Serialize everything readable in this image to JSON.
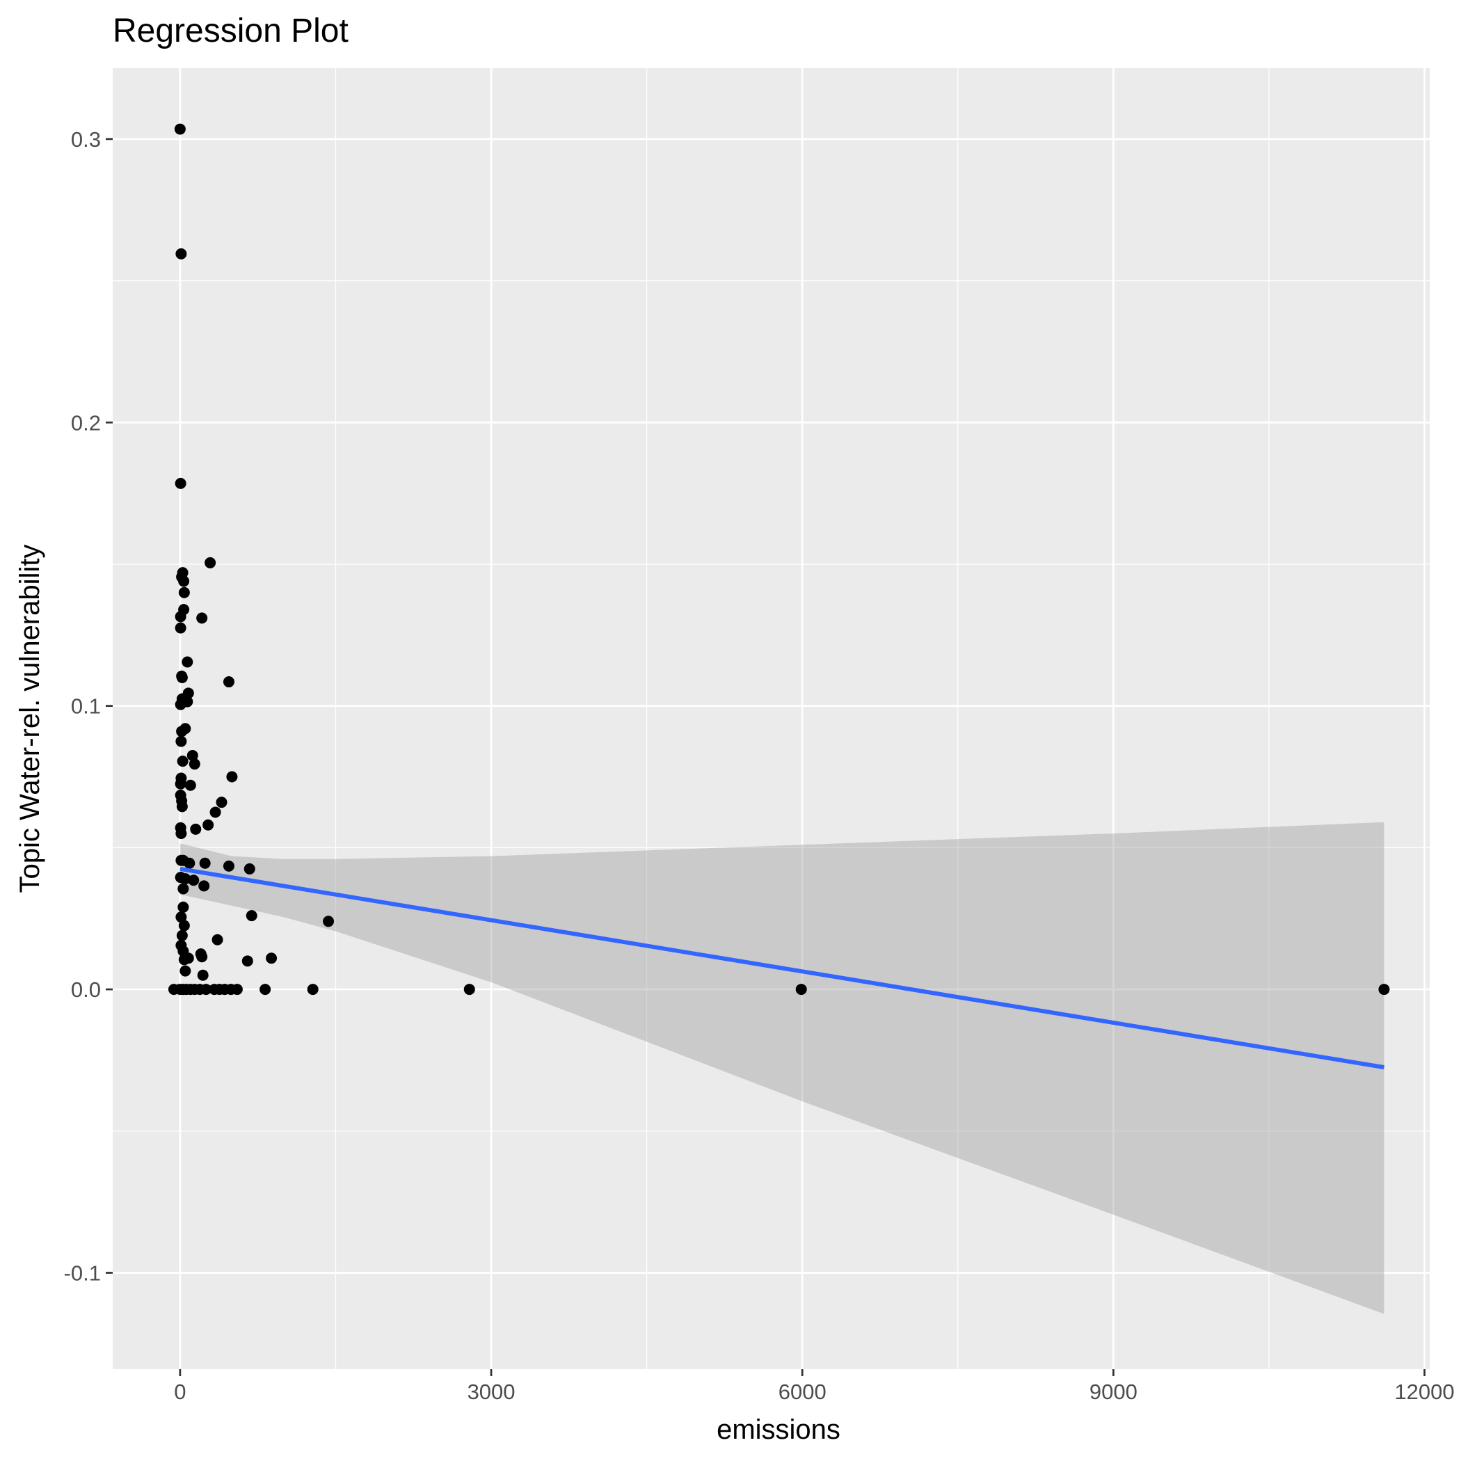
{
  "chart_data": {
    "type": "scatter",
    "title": "Regression Plot",
    "xlabel": "emissions",
    "ylabel": "Topic Water-rel. vulnerability",
    "xlim": [
      -650,
      12050
    ],
    "ylim": [
      -0.134,
      0.325
    ],
    "x_ticks": [
      0,
      3000,
      6000,
      9000,
      12000
    ],
    "x_tick_labels": [
      "0",
      "3000",
      "6000",
      "9000",
      "12000"
    ],
    "y_ticks": [
      -0.1,
      0.0,
      0.1,
      0.2,
      0.3
    ],
    "y_tick_labels": [
      "-0.1",
      "0.0",
      "0.1",
      "0.2",
      "0.3"
    ],
    "grid": true,
    "colors": {
      "panel": "#ebebeb",
      "grid": "#ffffff",
      "points": "#000000",
      "fit_line": "#3366ff",
      "confidence_band": "#999999"
    },
    "points": [
      [
        0,
        0.3035
      ],
      [
        10,
        0.2595
      ],
      [
        5,
        0.1785
      ],
      [
        25,
        0.147
      ],
      [
        15,
        0.1455
      ],
      [
        35,
        0.144
      ],
      [
        40,
        0.14
      ],
      [
        290,
        0.1505
      ],
      [
        35,
        0.134
      ],
      [
        5,
        0.1315
      ],
      [
        210,
        0.131
      ],
      [
        5,
        0.1275
      ],
      [
        70,
        0.1155
      ],
      [
        15,
        0.1105
      ],
      [
        20,
        0.11
      ],
      [
        470,
        0.1085
      ],
      [
        80,
        0.1045
      ],
      [
        20,
        0.1025
      ],
      [
        70,
        0.1015
      ],
      [
        5,
        0.1005
      ],
      [
        50,
        0.092
      ],
      [
        15,
        0.091
      ],
      [
        10,
        0.0875
      ],
      [
        120,
        0.0825
      ],
      [
        25,
        0.0805
      ],
      [
        140,
        0.0795
      ],
      [
        500,
        0.075
      ],
      [
        10,
        0.0745
      ],
      [
        5,
        0.0725
      ],
      [
        100,
        0.072
      ],
      [
        5,
        0.0685
      ],
      [
        15,
        0.0665
      ],
      [
        20,
        0.0645
      ],
      [
        400,
        0.066
      ],
      [
        340,
        0.0625
      ],
      [
        270,
        0.058
      ],
      [
        5,
        0.057
      ],
      [
        150,
        0.0565
      ],
      [
        10,
        0.055
      ],
      [
        30,
        0.0455
      ],
      [
        10,
        0.0455
      ],
      [
        90,
        0.0445
      ],
      [
        240,
        0.0445
      ],
      [
        470,
        0.0435
      ],
      [
        670,
        0.0425
      ],
      [
        5,
        0.0395
      ],
      [
        50,
        0.039
      ],
      [
        130,
        0.0385
      ],
      [
        230,
        0.0365
      ],
      [
        30,
        0.0355
      ],
      [
        30,
        0.029
      ],
      [
        690,
        0.026
      ],
      [
        10,
        0.0255
      ],
      [
        1430,
        0.024
      ],
      [
        40,
        0.0225
      ],
      [
        20,
        0.019
      ],
      [
        360,
        0.0175
      ],
      [
        10,
        0.0155
      ],
      [
        30,
        0.0135
      ],
      [
        200,
        0.0125
      ],
      [
        80,
        0.011
      ],
      [
        210,
        0.0115
      ],
      [
        40,
        0.0105
      ],
      [
        650,
        0.01
      ],
      [
        880,
        0.011
      ],
      [
        50,
        0.0065
      ],
      [
        220,
        0.005
      ],
      [
        -60,
        0
      ],
      [
        0,
        0
      ],
      [
        30,
        0
      ],
      [
        60,
        0
      ],
      [
        100,
        0
      ],
      [
        140,
        0
      ],
      [
        190,
        0
      ],
      [
        250,
        0
      ],
      [
        330,
        0
      ],
      [
        380,
        0
      ],
      [
        430,
        0
      ],
      [
        490,
        0
      ],
      [
        550,
        0
      ],
      [
        820,
        0
      ],
      [
        1280,
        0
      ],
      [
        2790,
        0
      ],
      [
        5990,
        0
      ],
      [
        11610,
        0
      ]
    ],
    "fit_line": {
      "x": [
        0,
        11610
      ],
      "y": [
        0.0425,
        -0.0275
      ]
    },
    "confidence_band": {
      "x": [
        0,
        500,
        1000,
        1500,
        3000,
        4500,
        6000,
        9000,
        11610
      ],
      "upper": [
        0.0515,
        0.047,
        0.046,
        0.046,
        0.047,
        0.049,
        0.051,
        0.055,
        0.059
      ],
      "lower": [
        0.0335,
        0.0295,
        0.0255,
        0.0205,
        0.0025,
        -0.0185,
        -0.0395,
        -0.0795,
        -0.1145
      ]
    }
  }
}
